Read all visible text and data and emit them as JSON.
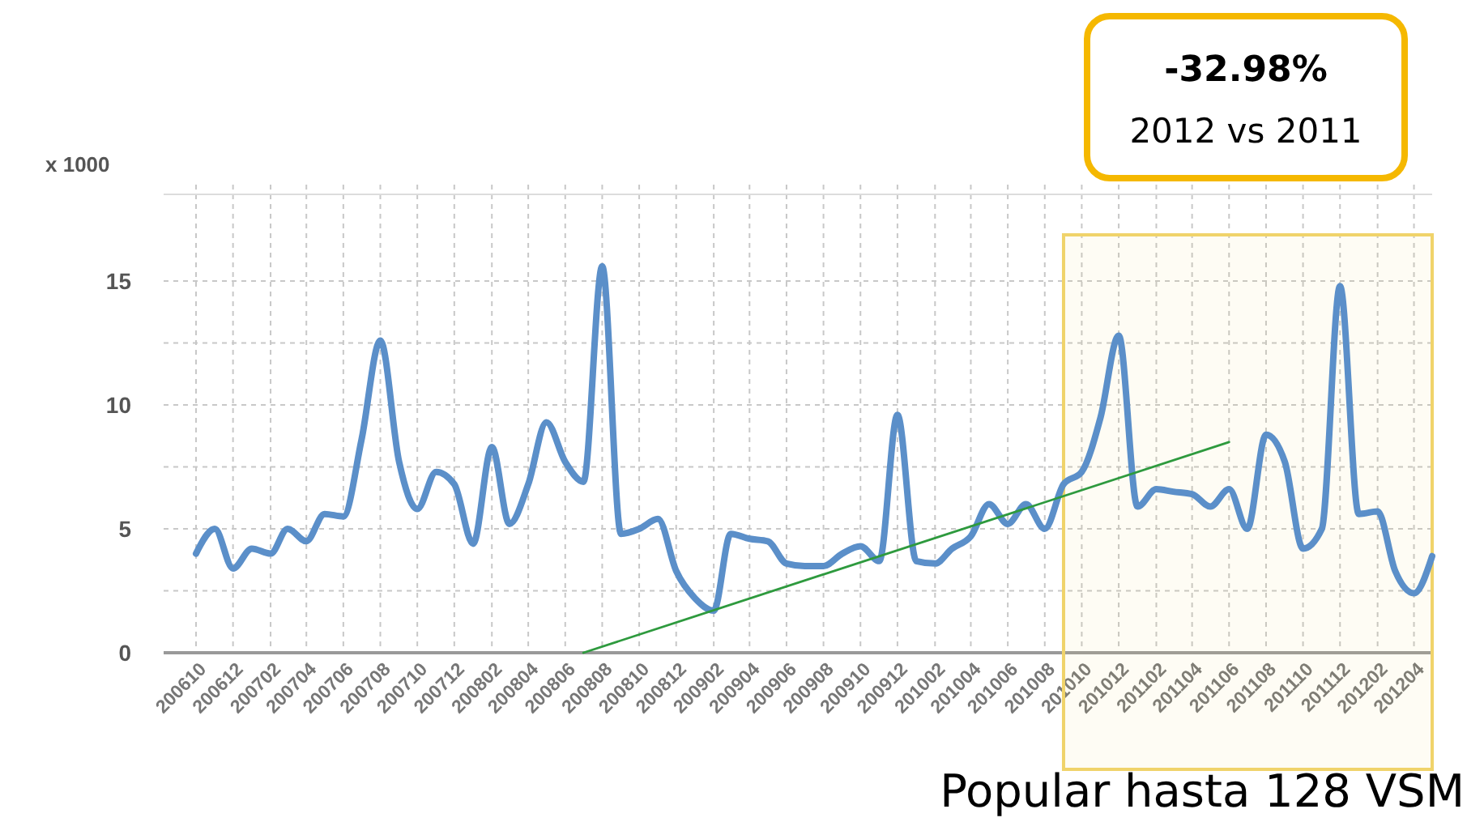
{
  "chart_data": {
    "type": "line",
    "ylabel": "x 1000",
    "annotations": [
      "-32.98%",
      "2012 vs 2011",
      "Popular hasta 128 VSM"
    ],
    "x": [
      "2006-10",
      "2006-11",
      "2006-12",
      "2007-01",
      "2007-02",
      "2007-03",
      "2007-04",
      "2007-05",
      "2007-06",
      "2007-07",
      "2007-08",
      "2007-09",
      "2007-10",
      "2007-11",
      "2007-12",
      "2008-01",
      "2008-02",
      "2008-03",
      "2008-04",
      "2008-05",
      "2008-06",
      "2008-07",
      "2008-08",
      "2008-09",
      "2008-10",
      "2008-11",
      "2008-12",
      "2009-01",
      "2009-02",
      "2009-03",
      "2009-04",
      "2009-05",
      "2009-06",
      "2009-07",
      "2009-08",
      "2009-09",
      "2009-10",
      "2009-11",
      "2009-12",
      "2010-01",
      "2010-02",
      "2010-03",
      "2010-04",
      "2010-05",
      "2010-06",
      "2010-07",
      "2010-08",
      "2010-09",
      "2010-10",
      "2010-11",
      "2010-12",
      "2011-01",
      "2011-02",
      "2011-03",
      "2011-04",
      "2011-05",
      "2011-06",
      "2011-07",
      "2011-08",
      "2011-09",
      "2011-10",
      "2011-11",
      "2011-12",
      "2012-01",
      "2012-02",
      "2012-03",
      "2012-04",
      "2012-05"
    ],
    "series": [
      {
        "color": "#5b8fc9",
        "values": [
          4.0,
          5.0,
          3.4,
          4.2,
          4.0,
          5.0,
          4.5,
          5.6,
          5.5,
          8.6,
          12.6,
          7.7,
          5.8,
          7.3,
          6.8,
          4.4,
          8.3,
          5.2,
          6.8,
          9.3,
          7.7,
          6.9,
          15.6,
          4.8,
          5.0,
          5.4,
          3.3,
          2.2,
          1.7,
          4.8,
          4.6,
          4.5,
          3.6,
          3.5,
          3.5,
          4.0,
          4.3,
          3.7,
          9.6,
          3.7,
          3.6,
          4.2,
          4.7,
          6.0,
          5.2,
          6.0,
          5.0,
          6.8,
          7.3,
          9.5,
          12.8,
          5.9,
          6.6,
          6.5,
          6.4,
          5.9,
          6.6,
          5.0,
          8.8,
          7.7,
          4.2,
          5.0,
          14.8,
          5.6,
          5.7,
          3.3,
          2.4,
          3.9
        ]
      },
      {
        "type": "line",
        "color": "#2e9a3e",
        "x": [
          "2008-07",
          "2011-06"
        ],
        "values": [
          0,
          8.5
        ]
      }
    ],
    "xlim": [
      "2006-10",
      "2012-05"
    ],
    "xticks": [
      {
        "value": "2006-10",
        "label": "200610"
      },
      {
        "value": "2006-12",
        "label": "200612"
      },
      {
        "value": "2007-02",
        "label": "200702"
      },
      {
        "value": "2007-04",
        "label": "200704"
      },
      {
        "value": "2007-06",
        "label": "200706"
      },
      {
        "value": "2007-08",
        "label": "200708"
      },
      {
        "value": "2007-10",
        "label": "200710"
      },
      {
        "value": "2007-12",
        "label": "200712"
      },
      {
        "value": "2008-02",
        "label": "200802"
      },
      {
        "value": "2008-04",
        "label": "200804"
      },
      {
        "value": "2008-06",
        "label": "200806"
      },
      {
        "value": "2008-08",
        "label": "200808"
      },
      {
        "value": "2008-10",
        "label": "200810"
      },
      {
        "value": "2008-12",
        "label": "200812"
      },
      {
        "value": "2009-02",
        "label": "200902"
      },
      {
        "value": "2009-04",
        "label": "200904"
      },
      {
        "value": "2009-06",
        "label": "200906"
      },
      {
        "value": "2009-08",
        "label": "200908"
      },
      {
        "value": "2009-10",
        "label": "200910"
      },
      {
        "value": "2009-12",
        "label": "200912"
      },
      {
        "value": "2010-02",
        "label": "201002"
      },
      {
        "value": "2010-04",
        "label": "201004"
      },
      {
        "value": "2010-06",
        "label": "201006"
      },
      {
        "value": "2010-08",
        "label": "201008"
      },
      {
        "value": "2010-10",
        "label": "201010"
      },
      {
        "value": "2010-12",
        "label": "201012"
      },
      {
        "value": "2011-02",
        "label": "201102"
      },
      {
        "value": "2011-04",
        "label": "201104"
      },
      {
        "value": "2011-06",
        "label": "201106"
      },
      {
        "value": "2011-08",
        "label": "201108"
      },
      {
        "value": "2011-10",
        "label": "201110"
      },
      {
        "value": "2011-12",
        "label": "201112"
      },
      {
        "value": "2012-02",
        "label": "201202"
      },
      {
        "value": "2012-04",
        "label": "201204"
      }
    ],
    "ylim": [
      0,
      18.5
    ],
    "yticks": [
      0,
      {
        "value": 2.5,
        "label": null
      },
      5,
      {
        "value": 7.5,
        "label": null
      },
      10,
      {
        "value": 12.5,
        "label": null
      },
      15
    ],
    "bands": [
      {
        "axis": "x",
        "from": "2010-09",
        "to": "2012-05",
        "color": "#f0d36a"
      }
    ],
    "grid": true,
    "marker": "none",
    "line_style": "solid"
  }
}
